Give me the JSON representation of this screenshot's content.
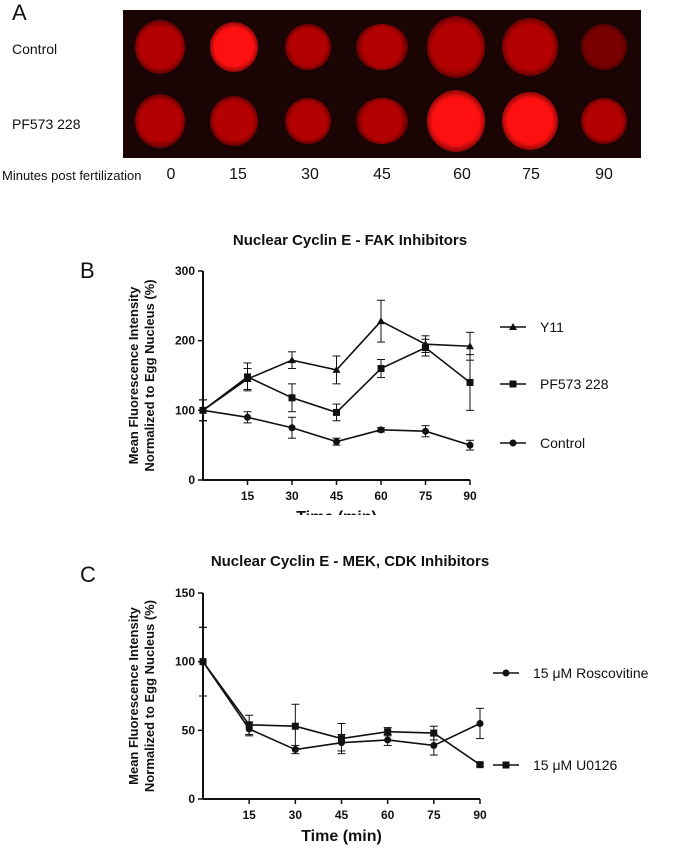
{
  "panel_a": {
    "letter": "A",
    "rows": [
      "Control",
      "PF573 228"
    ],
    "x_label": "Minutes post fertilization",
    "times": [
      "0",
      "15",
      "30",
      "45",
      "60",
      "75",
      "90"
    ],
    "colors": {
      "dim": "#7a0000",
      "mid": "#b30000",
      "bright": "#ff1010"
    },
    "brightness": [
      [
        "mid",
        "bright",
        "mid",
        "mid",
        "mid",
        "mid",
        "dim"
      ],
      [
        "mid",
        "mid",
        "mid",
        "mid",
        "bright",
        "bright",
        "mid"
      ]
    ]
  },
  "chart_data": [
    {
      "panel": "B",
      "type": "line",
      "title": "Nuclear Cyclin E - FAK Inhibitors",
      "xlabel": "Time (min)",
      "ylabel": "Mean Fluorescence Intensity Normalized to Egg Nucleus (%)",
      "ylabel_lines": [
        "Mean Fluorescence Intensity",
        "Normalized to Egg Nucleus (%)"
      ],
      "x": [
        0,
        15,
        30,
        45,
        60,
        75,
        90
      ],
      "x_ticks": [
        15,
        30,
        45,
        60,
        75,
        90
      ],
      "ylim": [
        0,
        300
      ],
      "y_ticks": [
        0,
        100,
        200,
        300
      ],
      "xlim": [
        0,
        90
      ],
      "legend_placement": "right",
      "series": [
        {
          "name": "Y11",
          "marker": "triangle",
          "values": [
            100,
            145,
            172,
            158,
            228,
            195,
            192
          ],
          "errors": [
            15,
            15,
            12,
            20,
            30,
            12,
            20
          ]
        },
        {
          "name": "PF573 228",
          "marker": "square",
          "values": [
            100,
            148,
            118,
            97,
            160,
            190,
            140
          ],
          "errors": [
            15,
            20,
            20,
            12,
            13,
            12,
            40
          ]
        },
        {
          "name": "Control",
          "marker": "circle",
          "values": [
            100,
            90,
            75,
            55,
            72,
            70,
            50
          ],
          "errors": [
            15,
            8,
            15,
            5,
            3,
            8,
            7
          ]
        }
      ]
    },
    {
      "panel": "C",
      "type": "line",
      "title": "Nuclear Cyclin E - MEK, CDK Inhibitors",
      "xlabel": "Time (min)",
      "ylabel": "Mean Fluorescence Intensity Normalized to Egg Nucleus (%)",
      "ylabel_lines": [
        "Mean Fluorescence Intensity",
        "Normalized to Egg Nucleus (%)"
      ],
      "x": [
        0,
        15,
        30,
        45,
        60,
        75,
        90
      ],
      "x_ticks": [
        15,
        30,
        45,
        60,
        75,
        90
      ],
      "ylim": [
        0,
        150
      ],
      "y_ticks": [
        0,
        50,
        100,
        150
      ],
      "xlim": [
        0,
        90
      ],
      "legend_placement": "right",
      "series": [
        {
          "name": "15 μM Roscovitine",
          "marker": "circle",
          "values": [
            100,
            51,
            36,
            41,
            43,
            39,
            55
          ],
          "errors": [
            25,
            5,
            3,
            6,
            4,
            7,
            11
          ]
        },
        {
          "name": "15 μM U0126",
          "marker": "square",
          "values": [
            100,
            54,
            53,
            44,
            49,
            48,
            25
          ],
          "errors": [
            25,
            7,
            16,
            11,
            3,
            5,
            1
          ]
        }
      ]
    }
  ]
}
